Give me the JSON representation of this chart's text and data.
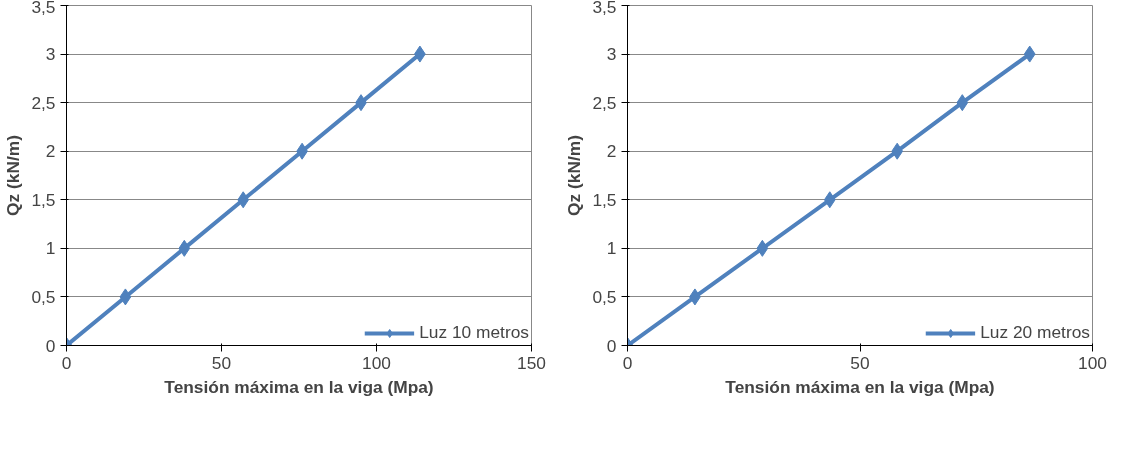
{
  "chart_data": [
    {
      "type": "line",
      "xlabel": "Tensión máxima en la viga (Mpa)",
      "ylabel": "Qz (kN/m)",
      "x": [
        0,
        19,
        38,
        57,
        76,
        95,
        114
      ],
      "series": [
        {
          "name": "Luz 10 metros",
          "color": "#4f81bd",
          "values": [
            0,
            0.5,
            1,
            1.5,
            2,
            2.5,
            3
          ]
        }
      ],
      "xlim": [
        0,
        150
      ],
      "xticks": [
        0,
        50,
        100,
        150
      ],
      "ylim": [
        0,
        3.5
      ],
      "yticks": [
        0,
        {
          "value": 0.5,
          "label": "0,5"
        },
        1,
        {
          "value": 1.5,
          "label": "1,5"
        },
        2,
        {
          "value": 2.5,
          "label": "2,5"
        },
        3,
        {
          "value": 3.5,
          "label": "3,5"
        }
      ],
      "grid": "y",
      "legend": "bottom right",
      "marker": "diamond",
      "line_style": "solid"
    },
    {
      "type": "line",
      "xlabel": "Tensión máxima en la viga (Mpa)",
      "ylabel": "Qz (kN/m)",
      "x": [
        0,
        14.5,
        29,
        43.5,
        58,
        72,
        86.5
      ],
      "series": [
        {
          "name": "Luz 20 metros",
          "color": "#4f81bd",
          "values": [
            0,
            0.5,
            1,
            1.5,
            2,
            2.5,
            3
          ]
        }
      ],
      "xlim": [
        0,
        100
      ],
      "xticks": [
        0,
        50,
        100
      ],
      "ylim": [
        0,
        3.5
      ],
      "yticks": [
        0,
        {
          "value": 0.5,
          "label": "0,5"
        },
        1,
        {
          "value": 1.5,
          "label": "1,5"
        },
        2,
        {
          "value": 2.5,
          "label": "2,5"
        },
        3,
        {
          "value": 3.5,
          "label": "3,5"
        }
      ],
      "grid": "y",
      "legend": "bottom right",
      "marker": "diamond",
      "line_style": "solid"
    }
  ]
}
